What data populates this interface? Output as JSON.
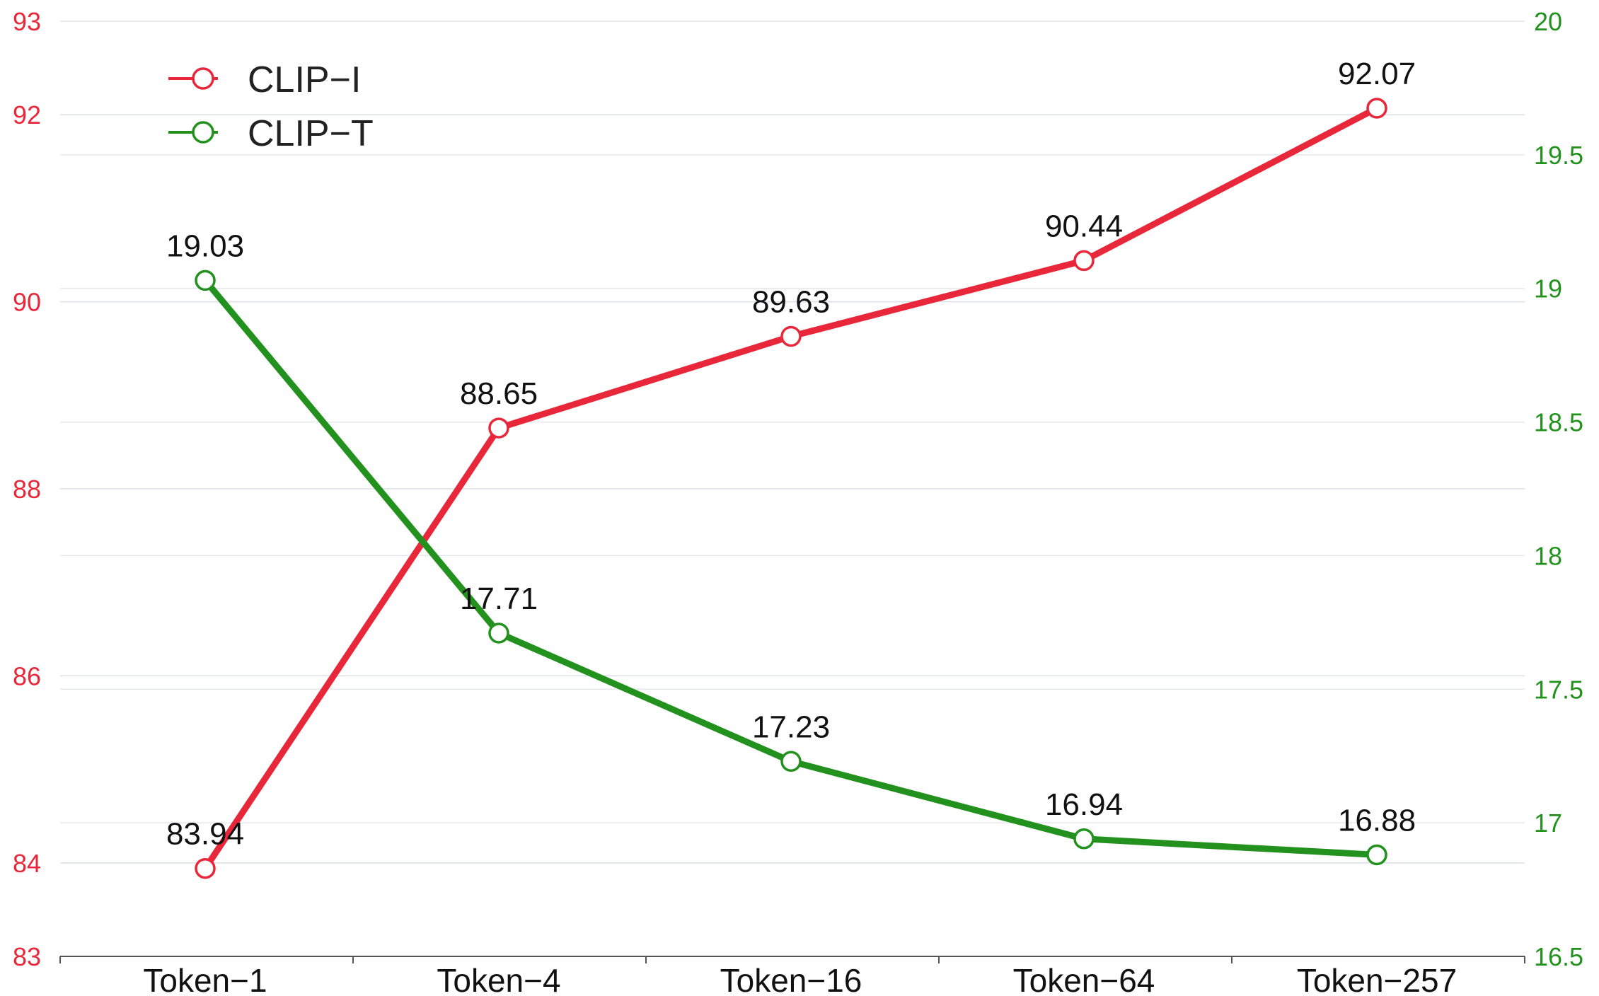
{
  "chart_data": {
    "type": "line",
    "categories": [
      "Token−1",
      "Token−4",
      "Token−16",
      "Token−64",
      "Token−257"
    ],
    "series": [
      {
        "name": "CLIP−I",
        "axis": "left",
        "color": "#e8283a",
        "values": [
          83.94,
          88.65,
          89.63,
          90.44,
          92.07
        ],
        "labels": [
          "83.94",
          "88.65",
          "89.63",
          "90.44",
          "92.07"
        ]
      },
      {
        "name": "CLIP−T",
        "axis": "right",
        "color": "#22911d",
        "values": [
          19.03,
          17.71,
          17.23,
          16.94,
          16.88
        ],
        "labels": [
          "19.03",
          "17.71",
          "17.23",
          "16.94",
          "16.88"
        ]
      }
    ],
    "y_left": {
      "lim": [
        83,
        93
      ],
      "ticks": [
        83,
        84,
        86,
        88,
        90,
        92,
        93
      ],
      "tick_labels": [
        "83",
        "84",
        "86",
        "88",
        "90",
        "92",
        "93"
      ],
      "color": "#e8283a"
    },
    "y_right": {
      "lim": [
        16.5,
        20
      ],
      "ticks": [
        16.5,
        17,
        17.5,
        18,
        18.5,
        19,
        19.5,
        20
      ],
      "tick_labels": [
        "16.5",
        "17",
        "17.5",
        "18",
        "18.5",
        "19",
        "19.5",
        "20"
      ],
      "color": "#22911d"
    },
    "grid": true,
    "legend_position": "top-left",
    "title": "",
    "xlabel": "",
    "ylabel": ""
  }
}
